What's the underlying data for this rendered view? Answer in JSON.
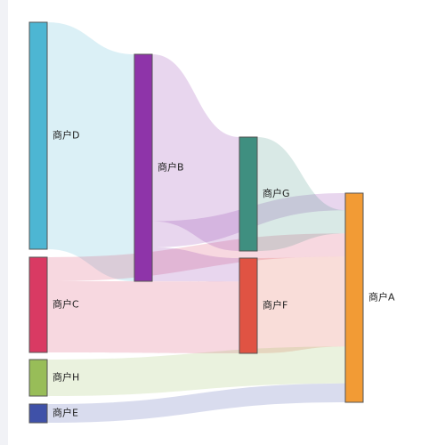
{
  "chart_data": {
    "type": "sankey",
    "nodes": [
      {
        "id": "D",
        "label": "商户D",
        "color": "#4db6d3"
      },
      {
        "id": "C",
        "label": "商户C",
        "color": "#d93a63"
      },
      {
        "id": "H",
        "label": "商户H",
        "color": "#98bd58"
      },
      {
        "id": "E",
        "label": "商户E",
        "color": "#3f51a8"
      },
      {
        "id": "B",
        "label": "商户B",
        "color": "#8e34a9"
      },
      {
        "id": "G",
        "label": "商户G",
        "color": "#3f8f80"
      },
      {
        "id": "F",
        "label": "商户F",
        "color": "#e05343"
      },
      {
        "id": "A",
        "label": "商户A",
        "color": "#f29b35"
      }
    ],
    "links": [
      {
        "source": "D",
        "target": "B",
        "value": 255
      },
      {
        "source": "C",
        "target": "A",
        "value": 27
      },
      {
        "source": "C",
        "target": "F",
        "value": 80
      },
      {
        "source": "B",
        "target": "G",
        "value": 128
      },
      {
        "source": "B",
        "target": "A",
        "value": 20
      },
      {
        "source": "B",
        "target": "F",
        "value": 26
      },
      {
        "source": "G",
        "target": "A",
        "value": 27
      },
      {
        "source": "F",
        "target": "A",
        "value": 105
      },
      {
        "source": "H",
        "target": "A",
        "value": 43
      },
      {
        "source": "E",
        "target": "A",
        "value": 22
      }
    ]
  }
}
